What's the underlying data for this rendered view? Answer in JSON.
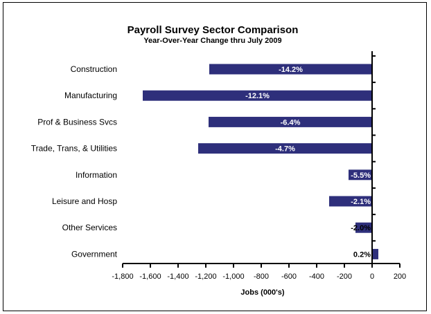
{
  "chart_data": {
    "type": "bar",
    "orientation": "horizontal",
    "title": "Payroll Survey Sector Comparison",
    "subtitle": "Year-Over-Year Change thru July 2009",
    "xlabel": "Jobs (000's)",
    "ylabel": "",
    "xlim": [
      -1800,
      200
    ],
    "x_ticks": [
      -1800,
      -1600,
      -1400,
      -1200,
      -1000,
      -800,
      -600,
      -400,
      -200,
      0,
      200
    ],
    "x_tick_labels": [
      "-1,800",
      "-1,600",
      "-1,400",
      "-1,200",
      "-1,000",
      "-800",
      "-600",
      "-400",
      "-200",
      "0",
      "200"
    ],
    "grid": false,
    "legend": "none",
    "bar_color": "#2E2F7B",
    "categories": [
      "Construction",
      "Manufacturing",
      "Prof & Business Svcs",
      "Trade, Trans, & Utilities",
      "Information",
      "Leisure and Hosp",
      "Other Services",
      "Government"
    ],
    "values": [
      -1175,
      -1655,
      -1180,
      -1255,
      -170,
      -310,
      -120,
      45
    ],
    "data_labels": [
      "-14.2%",
      "-12.1%",
      "-6.4%",
      "-4.7%",
      "-5.5%",
      "-2.1%",
      "-2.0%",
      "0.2%"
    ]
  }
}
